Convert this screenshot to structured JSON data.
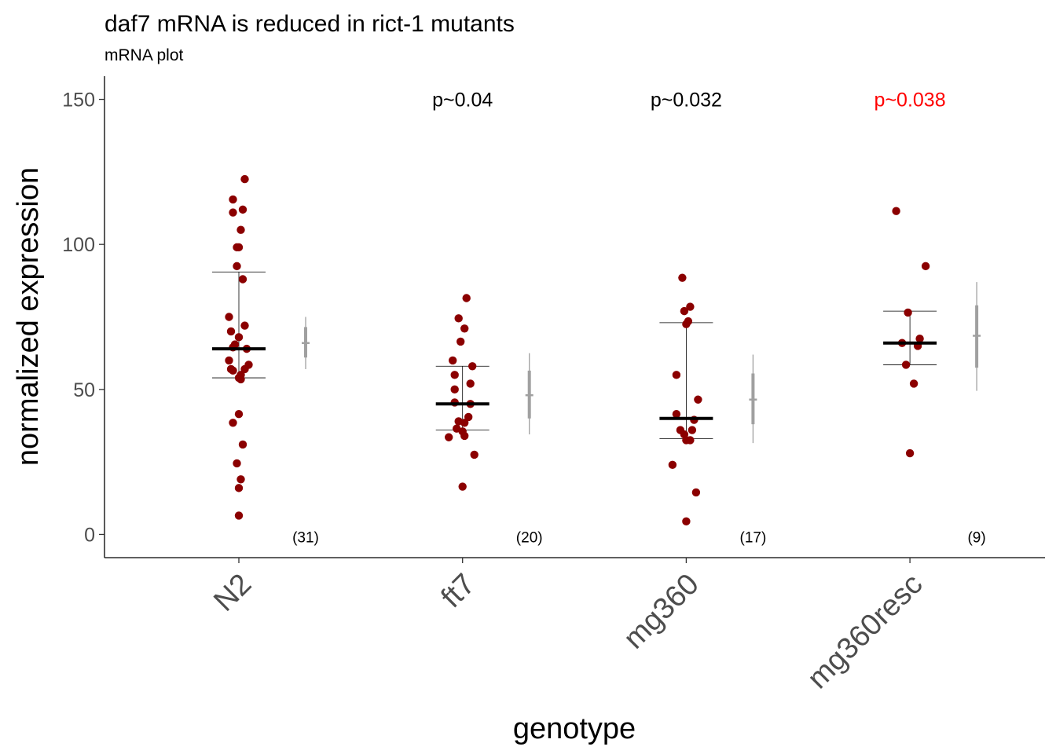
{
  "chart_data": {
    "type": "scatter",
    "title": "daf7 mRNA is reduced in rict-1 mutants",
    "subtitle": "mRNA plot",
    "xlabel": "genotype",
    "ylabel": "normalized expression",
    "ylim": [
      -8,
      158
    ],
    "yticks": [
      0,
      50,
      100,
      150
    ],
    "ytick_labels": [
      "0",
      "50",
      "100",
      "150"
    ],
    "grid": false,
    "point_color": "#8b0000",
    "summary_color": "#000000",
    "estimate_color": "#a0a0a0",
    "groups": [
      {
        "name": "N2",
        "n_label": "(31)",
        "p_label": "",
        "p_color": "#000000",
        "median": 64,
        "iqr": [
          54,
          90.5
        ],
        "estimate": {
          "center": 66,
          "inner": [
            61,
            71.5
          ],
          "outer": [
            57,
            75
          ]
        },
        "points": [
          [
            0.03,
            122.5
          ],
          [
            -0.03,
            115.5
          ],
          [
            0.02,
            112
          ],
          [
            -0.03,
            111
          ],
          [
            0.01,
            105
          ],
          [
            -0.01,
            99
          ],
          [
            0.0,
            99
          ],
          [
            -0.01,
            92.5
          ],
          [
            0.02,
            88
          ],
          [
            -0.05,
            75
          ],
          [
            0.03,
            72
          ],
          [
            -0.04,
            70
          ],
          [
            0.0,
            68
          ],
          [
            0.04,
            64
          ],
          [
            -0.02,
            65.5
          ],
          [
            -0.03,
            64.5
          ],
          [
            -0.05,
            60
          ],
          [
            0.05,
            58.5
          ],
          [
            0.03,
            57
          ],
          [
            -0.04,
            57
          ],
          [
            -0.03,
            56.5
          ],
          [
            0.01,
            55
          ],
          [
            0.0,
            54
          ],
          [
            0.01,
            53.5
          ],
          [
            0.0,
            41.5
          ],
          [
            -0.03,
            38.5
          ],
          [
            0.02,
            31
          ],
          [
            -0.01,
            24.5
          ],
          [
            0.01,
            19
          ],
          [
            0.0,
            16
          ],
          [
            0.0,
            6.5
          ]
        ]
      },
      {
        "name": "ft7",
        "n_label": "(20)",
        "p_label": "p~0.04",
        "p_color": "#000000",
        "median": 45,
        "iqr": [
          36,
          58
        ],
        "estimate": {
          "center": 48,
          "inner": [
            40,
            56.5
          ],
          "outer": [
            34.5,
            62.5
          ]
        },
        "points": [
          [
            0.02,
            81.5
          ],
          [
            -0.02,
            74.5
          ],
          [
            0.01,
            71
          ],
          [
            -0.01,
            66.5
          ],
          [
            -0.05,
            60
          ],
          [
            0.05,
            58
          ],
          [
            -0.04,
            55
          ],
          [
            0.04,
            52
          ],
          [
            -0.04,
            50
          ],
          [
            -0.04,
            45.5
          ],
          [
            0.04,
            45
          ],
          [
            0.03,
            40.5
          ],
          [
            -0.02,
            39
          ],
          [
            0.01,
            38.5
          ],
          [
            -0.03,
            36.5
          ],
          [
            0.0,
            35.5
          ],
          [
            0.01,
            34
          ],
          [
            -0.07,
            33.5
          ],
          [
            0.06,
            27.5
          ],
          [
            0.0,
            16.5
          ]
        ]
      },
      {
        "name": "mg360",
        "n_label": "(17)",
        "p_label": "p~0.032",
        "p_color": "#000000",
        "median": 40,
        "iqr": [
          33,
          73
        ],
        "estimate": {
          "center": 46.5,
          "inner": [
            38,
            55.5
          ],
          "outer": [
            31.5,
            62
          ]
        },
        "points": [
          [
            -0.02,
            88.5
          ],
          [
            0.02,
            78.5
          ],
          [
            -0.01,
            77
          ],
          [
            0.01,
            73.5
          ],
          [
            0.0,
            72.5
          ],
          [
            -0.05,
            55
          ],
          [
            0.06,
            46.5
          ],
          [
            -0.05,
            41.5
          ],
          [
            0.04,
            39.5
          ],
          [
            -0.03,
            36
          ],
          [
            0.03,
            36
          ],
          [
            -0.01,
            34.5
          ],
          [
            0.0,
            32.5
          ],
          [
            0.02,
            32.5
          ],
          [
            -0.07,
            24
          ],
          [
            0.05,
            14.5
          ],
          [
            0.0,
            4.5
          ]
        ]
      },
      {
        "name": "mg360resc",
        "n_label": "(9)",
        "p_label": "p~0.038",
        "p_color": "#ff0000",
        "median": 66,
        "iqr": [
          58.5,
          77
        ],
        "estimate": {
          "center": 68.5,
          "inner": [
            57.5,
            79
          ],
          "outer": [
            49.5,
            87
          ]
        },
        "points": [
          [
            -0.07,
            111.5
          ],
          [
            0.08,
            92.5
          ],
          [
            -0.01,
            76.5
          ],
          [
            0.05,
            67.5
          ],
          [
            -0.04,
            66
          ],
          [
            0.04,
            65
          ],
          [
            -0.02,
            58.5
          ],
          [
            0.02,
            52
          ],
          [
            0.0,
            28
          ]
        ]
      }
    ]
  }
}
